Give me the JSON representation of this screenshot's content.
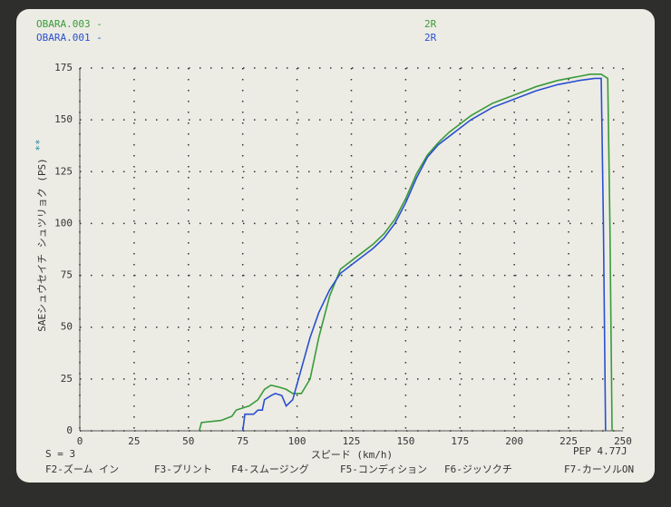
{
  "chart_data": {
    "type": "line",
    "xlabel": "スピード (km/h)",
    "ylabel": "SAEシュウセイチ シュツリョク (PS)",
    "ymark": "**",
    "xlim": [
      0,
      250
    ],
    "xticks": [
      0,
      25,
      50,
      75,
      100,
      125,
      150,
      175,
      200,
      225,
      250
    ],
    "ylim": [
      0,
      175
    ],
    "yticks": [
      0,
      25,
      50,
      75,
      100,
      125,
      150,
      175
    ],
    "grid": true,
    "series": [
      {
        "name": "OBARA.003 -",
        "label": "2R",
        "color": "#3a9a3a",
        "x": [
          55,
          56,
          65,
          70,
          72,
          78,
          82,
          85,
          88,
          92,
          95,
          98,
          102,
          106,
          110,
          115,
          120,
          125,
          130,
          135,
          140,
          145,
          150,
          155,
          160,
          165,
          170,
          175,
          180,
          190,
          200,
          210,
          220,
          230,
          235,
          240,
          243,
          244,
          245
        ],
        "values": [
          0,
          4,
          5,
          7,
          10,
          12,
          15,
          20,
          22,
          21,
          20,
          18,
          18,
          25,
          45,
          65,
          78,
          82,
          86,
          90,
          95,
          102,
          112,
          124,
          133,
          139,
          144,
          148,
          152,
          158,
          162,
          166,
          169,
          171,
          172,
          172,
          170,
          100,
          0
        ]
      },
      {
        "name": "OBARA.001 -",
        "label": "2R",
        "color": "#2a4fd0",
        "x": [
          75,
          76,
          80,
          82,
          84,
          85,
          88,
          90,
          93,
          95,
          98,
          102,
          106,
          110,
          115,
          120,
          125,
          130,
          135,
          140,
          145,
          150,
          155,
          160,
          165,
          170,
          175,
          180,
          190,
          200,
          210,
          220,
          230,
          237,
          240,
          241,
          242
        ],
        "values": [
          0,
          8,
          8,
          10,
          10,
          15,
          17,
          18,
          17,
          12,
          15,
          30,
          45,
          57,
          68,
          76,
          80,
          84,
          88,
          93,
          100,
          110,
          122,
          132,
          138,
          142,
          146,
          150,
          156,
          160,
          164,
          167,
          169,
          170,
          170,
          100,
          0
        ]
      }
    ],
    "s_label": "S = 3",
    "pep_label": "PEP 4.77J",
    "function_keys": [
      "F2-ズーム イン",
      "F3-プリント",
      "F4-スムージング",
      "F5-コンディション",
      "F6-ジッソクチ",
      "F7-カーソルON"
    ]
  }
}
